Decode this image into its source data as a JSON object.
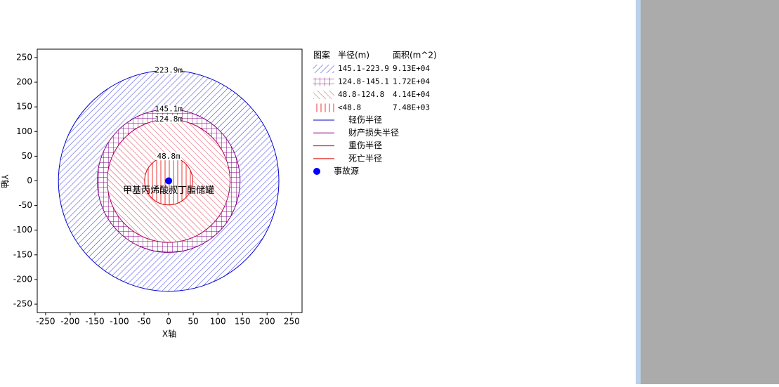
{
  "chart_data": {
    "type": "circle-zones",
    "x_label": "X轴",
    "y_label": "Y轴",
    "xlim": [
      -267,
      271
    ],
    "ylim": [
      -267,
      267
    ],
    "xticks": [
      -250,
      -200,
      -150,
      -100,
      -50,
      0,
      50,
      100,
      150,
      200,
      250
    ],
    "yticks": [
      -250,
      -200,
      -150,
      -100,
      -50,
      0,
      50,
      100,
      150,
      200,
      250
    ],
    "center": {
      "name": "事故源",
      "label": "甲基丙烯酸叔丁酯储罐",
      "x": 0,
      "y": 0,
      "color": "#0000ff"
    },
    "series": [
      {
        "name": "轻伤半径",
        "color": "#0000cc",
        "values": [
          223.9
        ],
        "value_labels": [
          "223.9m"
        ]
      },
      {
        "name": "财产损失半径",
        "color": "#800080",
        "values": [
          145.1
        ],
        "value_labels": [
          "145.1m"
        ]
      },
      {
        "name": "重伤半径",
        "color": "#b0005a",
        "values": [
          124.8
        ],
        "value_labels": [
          "124.8m"
        ]
      },
      {
        "name": "死亡半径",
        "color": "#dd0000",
        "values": [
          48.8
        ],
        "value_labels": [
          "48.8m"
        ]
      }
    ],
    "legend": {
      "headers": [
        "图案",
        "半径(m)",
        "面积(m^2)"
      ],
      "rows": [
        [
          "145.1-223.9",
          "9.13E+04"
        ],
        [
          "124.8-145.1",
          "1.72E+04"
        ],
        [
          "48.8-124.8",
          "4.14E+04"
        ],
        [
          "<48.8",
          "7.48E+03"
        ]
      ]
    }
  }
}
